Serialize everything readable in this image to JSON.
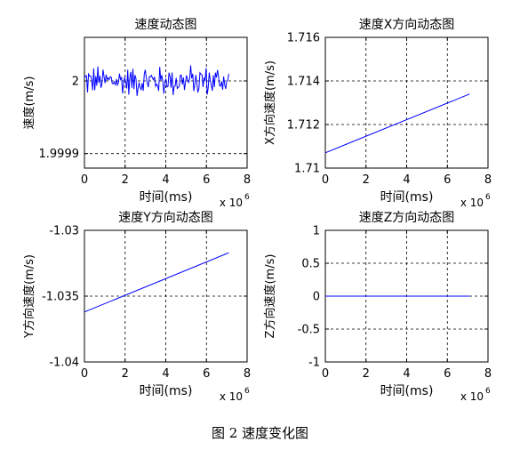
{
  "caption": "图 2  速度变化图",
  "chart_data": [
    {
      "type": "line",
      "title": "速度动态图",
      "xlabel": "时间(ms)",
      "ylabel": "速度(m/s)",
      "x_exponent_label": "x 10",
      "x_exponent": "6",
      "xlim": [
        0,
        8
      ],
      "ylim": [
        1.99988,
        2.00006
      ],
      "xticks": [
        0,
        2,
        4,
        6,
        8
      ],
      "xtick_labels": [
        "0",
        "2",
        "4",
        "6",
        "8"
      ],
      "yticks": [
        1.9999,
        2
      ],
      "ytick_labels": [
        "1.9999",
        "2"
      ],
      "grid": true,
      "series": [
        {
          "color": "#0000ff",
          "style": "noisy-oscillation",
          "x_range": [
            0,
            7.1
          ],
          "mean": 2.0,
          "amplitude": 2e-05,
          "points": 140
        }
      ]
    },
    {
      "type": "line",
      "title": "速度X方向动态图",
      "xlabel": "时间(ms)",
      "ylabel": "X方向速度(m/s)",
      "x_exponent_label": "x 10",
      "x_exponent": "6",
      "xlim": [
        0,
        8
      ],
      "ylim": [
        1.71,
        1.716
      ],
      "xticks": [
        0,
        2,
        4,
        6,
        8
      ],
      "xtick_labels": [
        "0",
        "2",
        "4",
        "6",
        "8"
      ],
      "yticks": [
        1.71,
        1.712,
        1.714,
        1.716
      ],
      "ytick_labels": [
        "1.71",
        "1.712",
        "1.714",
        "1.716"
      ],
      "grid": true,
      "series": [
        {
          "color": "#0000ff",
          "style": "linear",
          "x": [
            0,
            7.1
          ],
          "y": [
            1.7107,
            1.7134
          ]
        }
      ]
    },
    {
      "type": "line",
      "title": "速度Y方向动态图",
      "xlabel": "时间(ms)",
      "ylabel": "Y方向速度(m/s)",
      "x_exponent_label": "x 10",
      "x_exponent": "6",
      "xlim": [
        0,
        8
      ],
      "ylim": [
        -1.04,
        -1.03
      ],
      "xticks": [
        0,
        2,
        4,
        6,
        8
      ],
      "xtick_labels": [
        "0",
        "2",
        "4",
        "6",
        "8"
      ],
      "yticks": [
        -1.04,
        -1.035,
        -1.03
      ],
      "ytick_labels": [
        "-1.04",
        "-1.035",
        "-1.03"
      ],
      "grid": true,
      "series": [
        {
          "color": "#0000ff",
          "style": "linear",
          "x": [
            0,
            7.1
          ],
          "y": [
            -1.0362,
            -1.0317
          ]
        }
      ]
    },
    {
      "type": "line",
      "title": "速度Z方向动态图",
      "xlabel": "时间(ms)",
      "ylabel": "Z方向速度(m/s)",
      "x_exponent_label": "x 10",
      "x_exponent": "6",
      "xlim": [
        0,
        8
      ],
      "ylim": [
        -1,
        1
      ],
      "xticks": [
        0,
        2,
        4,
        6,
        8
      ],
      "xtick_labels": [
        "0",
        "2",
        "4",
        "6",
        "8"
      ],
      "yticks": [
        -1,
        -0.5,
        0,
        0.5,
        1
      ],
      "ytick_labels": [
        "-1",
        "-0.5",
        "0",
        "0.5",
        "1"
      ],
      "grid": true,
      "series": [
        {
          "color": "#0000ff",
          "style": "linear",
          "x": [
            0,
            7.1
          ],
          "y": [
            0,
            0
          ]
        }
      ]
    }
  ]
}
